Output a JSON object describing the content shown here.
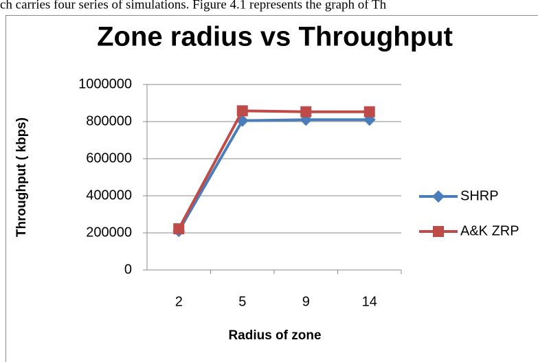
{
  "page_text": "ch carries four series of simulations. Figure 4.1 represents the graph of Th",
  "chart_data": {
    "type": "line",
    "title": "Zone radius vs Throughput",
    "x_label": "Radius of zone",
    "y_label": "Throughput ( kbps)",
    "categories": [
      "2",
      "5",
      "9",
      "14"
    ],
    "series": [
      {
        "name": "SHRP",
        "color": "#4a7ebb",
        "marker": "diamond",
        "values": [
          210000,
          805000,
          810000,
          810000
        ]
      },
      {
        "name": "A&K ZRP",
        "color": "#be4b48",
        "marker": "square",
        "values": [
          222000,
          858000,
          853000,
          853000
        ]
      }
    ],
    "ylim": [
      0,
      1000000
    ],
    "yticks": [
      0,
      200000,
      400000,
      600000,
      800000,
      1000000
    ],
    "grid": true,
    "legend": "right"
  }
}
